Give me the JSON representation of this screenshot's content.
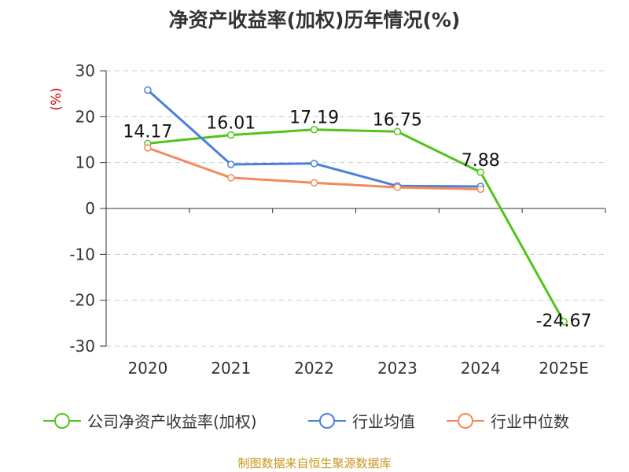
{
  "chart_data": {
    "type": "line",
    "title": "净资产收益率(加权)历年情况(%)",
    "ylabel": "(%)",
    "categories": [
      "2020",
      "2021",
      "2022",
      "2023",
      "2024",
      "2025E"
    ],
    "ylim": [
      -30,
      30
    ],
    "yticks": [
      30,
      20,
      10,
      0,
      -10,
      -20,
      -30
    ],
    "grid": true,
    "legend_position": "bottom",
    "series": [
      {
        "name": "公司净资产收益率(加权)",
        "color": "#52c41a",
        "values": [
          14.17,
          16.01,
          17.19,
          16.75,
          7.88,
          -24.67
        ],
        "labels": [
          "14.17",
          "16.01",
          "17.19",
          "16.75",
          "7.88",
          "-24.67"
        ]
      },
      {
        "name": "行业均值",
        "color": "#4a7fdc",
        "values": [
          25.8,
          9.6,
          9.8,
          4.9,
          4.8,
          null
        ]
      },
      {
        "name": "行业中位数",
        "color": "#f5895a",
        "values": [
          13.2,
          6.7,
          5.6,
          4.6,
          4.2,
          null
        ]
      }
    ]
  },
  "footer": "制图数据来自恒生聚源数据库"
}
